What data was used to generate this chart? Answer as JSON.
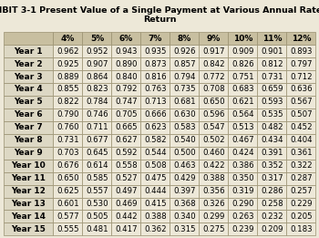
{
  "title_line1": "EXHIBIT 3-1 Present Value of a Single Payment at Various Annual Rates of",
  "title_line2": "Return",
  "col_headers": [
    "",
    "4%",
    "5%",
    "6%",
    "7%",
    "8%",
    "9%",
    "10%",
    "11%",
    "12%"
  ],
  "row_labels": [
    "Year 1",
    "Year 2",
    "Year 3",
    "Year 4",
    "Year 5",
    "Year 6",
    "Year 7",
    "Year 8",
    "Year 9",
    "Year 10",
    "Year 11",
    "Year 12",
    "Year 13",
    "Year 14",
    "Year 15"
  ],
  "table_data": [
    [
      0.962,
      0.952,
      0.943,
      0.935,
      0.926,
      0.917,
      0.909,
      0.901,
      0.893
    ],
    [
      0.925,
      0.907,
      0.89,
      0.873,
      0.857,
      0.842,
      0.826,
      0.812,
      0.797
    ],
    [
      0.889,
      0.864,
      0.84,
      0.816,
      0.794,
      0.772,
      0.751,
      0.731,
      0.712
    ],
    [
      0.855,
      0.823,
      0.792,
      0.763,
      0.735,
      0.708,
      0.683,
      0.659,
      0.636
    ],
    [
      0.822,
      0.784,
      0.747,
      0.713,
      0.681,
      0.65,
      0.621,
      0.593,
      0.567
    ],
    [
      0.79,
      0.746,
      0.705,
      0.666,
      0.63,
      0.596,
      0.564,
      0.535,
      0.507
    ],
    [
      0.76,
      0.711,
      0.665,
      0.623,
      0.583,
      0.547,
      0.513,
      0.482,
      0.452
    ],
    [
      0.731,
      0.677,
      0.627,
      0.582,
      0.54,
      0.502,
      0.467,
      0.434,
      0.404
    ],
    [
      0.703,
      0.645,
      0.592,
      0.544,
      0.5,
      0.46,
      0.424,
      0.391,
      0.361
    ],
    [
      0.676,
      0.614,
      0.558,
      0.508,
      0.463,
      0.422,
      0.386,
      0.352,
      0.322
    ],
    [
      0.65,
      0.585,
      0.527,
      0.475,
      0.429,
      0.388,
      0.35,
      0.317,
      0.287
    ],
    [
      0.625,
      0.557,
      0.497,
      0.444,
      0.397,
      0.356,
      0.319,
      0.286,
      0.257
    ],
    [
      0.601,
      0.53,
      0.469,
      0.415,
      0.368,
      0.326,
      0.29,
      0.258,
      0.229
    ],
    [
      0.577,
      0.505,
      0.442,
      0.388,
      0.34,
      0.299,
      0.263,
      0.232,
      0.205
    ],
    [
      0.555,
      0.481,
      0.417,
      0.362,
      0.315,
      0.275,
      0.239,
      0.209,
      0.183
    ]
  ],
  "bg_color": "#ede8d8",
  "header_bg": "#c8bfa0",
  "row_label_bg": "#ddd8c4",
  "cell_bg": "#ede8d8",
  "border_color": "#999070",
  "text_color": "#000000",
  "title_fontsize": 6.8,
  "header_fontsize": 6.5,
  "cell_fontsize": 6.2,
  "row_label_fontsize": 6.5
}
